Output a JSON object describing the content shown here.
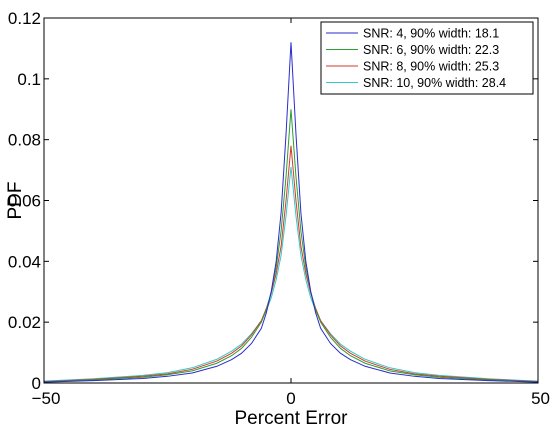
{
  "chart_data": {
    "type": "line",
    "xlabel": "Percent Error",
    "ylabel": "PDF",
    "xlim": [
      -50,
      50
    ],
    "ylim": [
      0,
      0.12
    ],
    "x_ticks": [
      "−50",
      "0",
      "50"
    ],
    "y_ticks": [
      "0",
      "0.02",
      "0.04",
      "0.06",
      "0.08",
      "0.1",
      "0.12"
    ],
    "grid": false,
    "legend_position": "top-right",
    "x": [
      -50,
      -40,
      -30,
      -25,
      -20,
      -15,
      -12,
      -10,
      -8,
      -6,
      -5,
      -4,
      -3,
      -2,
      -1,
      0,
      1,
      2,
      3,
      4,
      5,
      6,
      8,
      10,
      12,
      15,
      20,
      25,
      30,
      40,
      50
    ],
    "series": [
      {
        "name": "SNR: 4, 90% width: 18.1",
        "color": "#2b2bcf",
        "values": [
          0.0003,
          0.0008,
          0.0015,
          0.0022,
          0.0033,
          0.0055,
          0.0077,
          0.0098,
          0.013,
          0.018,
          0.023,
          0.03,
          0.04,
          0.056,
          0.082,
          0.112,
          0.082,
          0.056,
          0.04,
          0.03,
          0.023,
          0.018,
          0.013,
          0.0098,
          0.0077,
          0.0055,
          0.0033,
          0.0022,
          0.0015,
          0.0008,
          0.0003
        ]
      },
      {
        "name": "SNR: 6, 90% width: 22.3",
        "color": "#2e9e2e",
        "values": [
          0.0004,
          0.001,
          0.0019,
          0.0027,
          0.004,
          0.0065,
          0.009,
          0.0114,
          0.015,
          0.02,
          0.024,
          0.03,
          0.038,
          0.05,
          0.068,
          0.09,
          0.068,
          0.05,
          0.038,
          0.03,
          0.024,
          0.02,
          0.015,
          0.0114,
          0.009,
          0.0065,
          0.004,
          0.0027,
          0.0019,
          0.001,
          0.0004
        ]
      },
      {
        "name": "SNR: 8, 90% width: 25.3",
        "color": "#d23a2a",
        "values": [
          0.0005,
          0.0012,
          0.0022,
          0.003,
          0.0045,
          0.0072,
          0.0098,
          0.0122,
          0.0158,
          0.0205,
          0.0245,
          0.0295,
          0.036,
          0.045,
          0.06,
          0.078,
          0.06,
          0.045,
          0.036,
          0.0295,
          0.0245,
          0.0205,
          0.0158,
          0.0122,
          0.0098,
          0.0072,
          0.0045,
          0.003,
          0.0022,
          0.0012,
          0.0005
        ]
      },
      {
        "name": "SNR: 10, 90% width: 28.4",
        "color": "#35c8c8",
        "values": [
          0.0006,
          0.0014,
          0.0025,
          0.0034,
          0.005,
          0.0078,
          0.0105,
          0.0128,
          0.0162,
          0.0205,
          0.0238,
          0.028,
          0.034,
          0.042,
          0.055,
          0.071,
          0.055,
          0.042,
          0.034,
          0.028,
          0.0238,
          0.0205,
          0.0162,
          0.0128,
          0.0105,
          0.0078,
          0.005,
          0.0034,
          0.0025,
          0.0014,
          0.0006
        ]
      }
    ]
  }
}
